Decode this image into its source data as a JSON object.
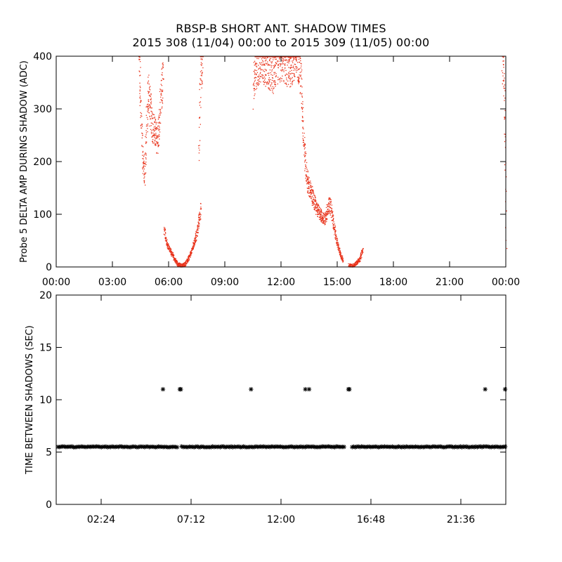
{
  "header": {
    "title": "RBSP-B SHORT ANT. SHADOW TIMES",
    "subtitle": "2015 308 (11/04) 00:00 to 2015 309 (11/05) 00:00"
  },
  "chart_data": [
    {
      "type": "scatter",
      "ylabel": "Probe 5 DELTA AMP DURING SHADOW (ADC)",
      "xlabel": "",
      "xlim_hours": [
        0,
        24
      ],
      "ylim": [
        0,
        400
      ],
      "xticks": [
        {
          "t": 0,
          "label": "00:00"
        },
        {
          "t": 3,
          "label": "03:00"
        },
        {
          "t": 6,
          "label": "06:00"
        },
        {
          "t": 9,
          "label": "09:00"
        },
        {
          "t": 12,
          "label": "12:00"
        },
        {
          "t": 15,
          "label": "15:00"
        },
        {
          "t": 18,
          "label": "18:00"
        },
        {
          "t": 21,
          "label": "21:00"
        },
        {
          "t": 24,
          "label": "00:00"
        }
      ],
      "yticks": [
        0,
        100,
        200,
        300,
        400
      ],
      "marker_color": "#e8321a",
      "segments": [
        {
          "x": [
            4.4,
            4.5,
            4.6,
            4.7,
            4.8,
            4.9,
            5.0,
            5.1,
            5.2,
            5.3,
            5.4,
            5.5,
            5.6,
            5.7
          ],
          "y": [
            390,
            300,
            210,
            170,
            260,
            340,
            300,
            275,
            260,
            250,
            240,
            280,
            330,
            360
          ]
        },
        {
          "x": [
            5.75,
            5.9,
            6.1,
            6.3,
            6.5,
            6.7,
            6.9,
            7.1,
            7.3,
            7.5,
            7.6,
            7.7
          ],
          "y": [
            70,
            45,
            30,
            15,
            5,
            2,
            8,
            20,
            40,
            65,
            90,
            110
          ]
        },
        {
          "x": [
            7.6,
            7.65,
            7.7,
            7.8
          ],
          "y": [
            200,
            300,
            380,
            400
          ]
        },
        {
          "x": [
            10.5,
            10.6,
            10.9,
            11.2,
            11.5,
            11.8,
            12.1,
            12.4,
            12.7,
            12.9
          ],
          "y": [
            330,
            380,
            400,
            390,
            370,
            395,
            400,
            385,
            395,
            400
          ]
        },
        {
          "x": [
            12.9,
            13.0,
            13.1,
            13.2,
            13.3,
            13.4,
            13.5,
            13.6,
            13.7,
            13.8,
            13.9,
            14.0,
            14.1,
            14.2,
            14.3,
            14.4,
            14.5,
            14.6,
            14.7,
            14.8,
            14.9,
            15.0,
            15.1,
            15.2,
            15.3
          ],
          "y": [
            400,
            380,
            320,
            240,
            190,
            160,
            150,
            140,
            130,
            120,
            110,
            105,
            100,
            95,
            90,
            100,
            115,
            120,
            100,
            80,
            60,
            45,
            30,
            20,
            12
          ]
        },
        {
          "x": [
            15.6,
            15.8,
            16.0,
            16.2,
            16.35
          ],
          "y": [
            4,
            2,
            8,
            15,
            35
          ]
        },
        {
          "x": [
            23.8,
            23.85,
            23.9,
            23.95,
            24.0
          ],
          "y": [
            400,
            380,
            330,
            230,
            40
          ]
        }
      ]
    },
    {
      "type": "scatter",
      "ylabel": "TIME BETWEEN SHADOWS (SEC)",
      "xlabel": "",
      "xlim_hours": [
        0,
        24
      ],
      "ylim": [
        0,
        20
      ],
      "xticks": [
        {
          "t": 2.4,
          "label": "02:24"
        },
        {
          "t": 7.2,
          "label": "07:12"
        },
        {
          "t": 12.0,
          "label": "12:00"
        },
        {
          "t": 16.8,
          "label": "16:48"
        },
        {
          "t": 21.6,
          "label": "21:36"
        }
      ],
      "yticks": [
        0,
        5,
        10,
        15,
        20
      ],
      "marker": "asterisk",
      "baseline": {
        "y": 5.5,
        "x_ranges": [
          [
            0.1,
            6.5
          ],
          [
            6.7,
            15.4
          ],
          [
            15.8,
            24.0
          ]
        ]
      },
      "outliers": {
        "x": [
          5.7,
          6.6,
          6.65,
          10.4,
          13.3,
          13.5,
          15.6,
          15.65,
          22.9,
          24.0
        ],
        "y": [
          11,
          11,
          11,
          11,
          11,
          11,
          11,
          11,
          11,
          11
        ]
      }
    }
  ]
}
